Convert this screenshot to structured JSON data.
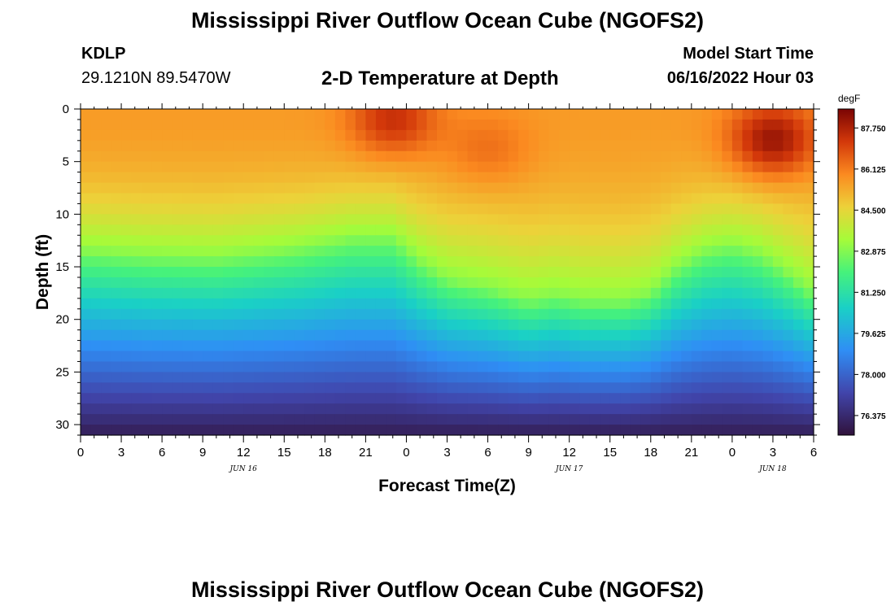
{
  "header": {
    "title": "Mississippi River Outflow Ocean Cube (NGOFS2)",
    "station_id": "KDLP",
    "station_coords": "29.1210N  89.5470W",
    "subtitle": "2-D Temperature at Depth",
    "model_start_label": "Model Start Time",
    "model_start_value": "06/16/2022 Hour 03"
  },
  "footer": {
    "repeated_title": "Mississippi River Outflow Ocean Cube (NGOFS2)"
  },
  "chart_data": {
    "type": "heatmap",
    "title": "2-D Temperature at Depth",
    "xlabel": "Forecast Time(Z)",
    "ylabel": "Depth (ft)",
    "x_tick_labels": [
      "0",
      "3",
      "6",
      "9",
      "12",
      "15",
      "18",
      "21",
      "0",
      "3",
      "6",
      "9",
      "12",
      "15",
      "18",
      "21",
      "0",
      "3",
      "6"
    ],
    "x_range_hours": [
      0,
      54
    ],
    "date_labels": [
      {
        "text": "JUN 16",
        "hour": 12
      },
      {
        "text": "JUN 17",
        "hour": 36
      },
      {
        "text": "JUN 18",
        "hour": 51
      }
    ],
    "y_ticks": [
      0,
      5,
      10,
      15,
      20,
      25,
      30
    ],
    "y_range_ft": [
      0,
      31
    ],
    "y_inverted": true,
    "colorbar": {
      "unit": "degF",
      "labels": [
        "87.750",
        "86.125",
        "84.500",
        "82.875",
        "81.250",
        "79.625",
        "78.000",
        "76.375"
      ],
      "vmin": 75.6,
      "vmax": 88.5
    },
    "iso_82_9_depth_ft": [
      {
        "hour": 0,
        "depth": 13.5
      },
      {
        "hour": 5,
        "depth": 14.0
      },
      {
        "hour": 10,
        "depth": 14.2
      },
      {
        "hour": 16,
        "depth": 13.3
      },
      {
        "hour": 20,
        "depth": 12.3
      },
      {
        "hour": 23,
        "depth": 12.3
      },
      {
        "hour": 25,
        "depth": 14.5
      },
      {
        "hour": 27,
        "depth": 16.2
      },
      {
        "hour": 30,
        "depth": 17.0
      },
      {
        "hour": 33,
        "depth": 18.2
      },
      {
        "hour": 35,
        "depth": 17.7
      },
      {
        "hour": 37,
        "depth": 18.2
      },
      {
        "hour": 40,
        "depth": 18.3
      },
      {
        "hour": 42,
        "depth": 17.5
      },
      {
        "hour": 44,
        "depth": 15.0
      },
      {
        "hour": 46,
        "depth": 13.5
      },
      {
        "hour": 48,
        "depth": 13.0
      },
      {
        "hour": 50,
        "depth": 13.8
      },
      {
        "hour": 52,
        "depth": 15.5
      },
      {
        "hour": 54,
        "depth": 17.5
      }
    ],
    "warm_cores": [
      {
        "hour": 23,
        "depth": 1.0,
        "value": 87.4
      },
      {
        "hour": 51,
        "depth": 3.0,
        "value": 88.1
      },
      {
        "hour": 30,
        "depth": 4.0,
        "value": 86.4
      }
    ],
    "surface_temp_degF": 85.6,
    "bottom_temp_degF": 76.0
  }
}
